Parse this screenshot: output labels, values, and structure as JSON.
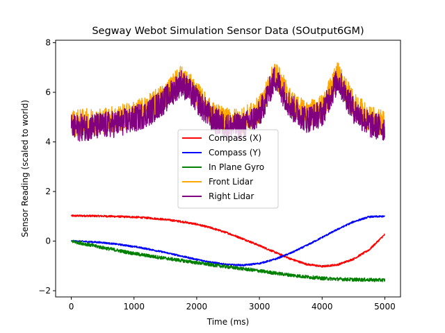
{
  "chart_data": {
    "type": "line",
    "title": "Segway Webot Simulation Sensor Data (SOutput6GM)",
    "xlabel": "Time (ms)",
    "ylabel": "Sensor Reading (scaled to world)",
    "xlim": [
      -250,
      5250
    ],
    "ylim": [
      -2.25,
      8.1
    ],
    "xticks": [
      0,
      1000,
      2000,
      3000,
      4000,
      5000
    ],
    "yticks": [
      -2,
      0,
      2,
      4,
      6,
      8
    ],
    "grid": false,
    "legend_position": "center",
    "series": [
      {
        "name": "Compass (X)",
        "color": "#ff0000",
        "noise": 0.04,
        "x": [
          0,
          250,
          500,
          750,
          1000,
          1250,
          1500,
          1750,
          2000,
          2250,
          2500,
          2750,
          3000,
          3250,
          3500,
          3750,
          4000,
          4250,
          4500,
          4750,
          5000
        ],
        "y": [
          1.02,
          1.02,
          1.01,
          0.99,
          0.97,
          0.93,
          0.87,
          0.79,
          0.68,
          0.52,
          0.32,
          0.08,
          -0.18,
          -0.45,
          -0.72,
          -0.93,
          -1.02,
          -0.95,
          -0.72,
          -0.35,
          0.27
        ]
      },
      {
        "name": "Compass (Y)",
        "color": "#0000ff",
        "noise": 0.035,
        "x": [
          0,
          250,
          500,
          750,
          1000,
          1250,
          1500,
          1750,
          2000,
          2250,
          2500,
          2750,
          3000,
          3250,
          3500,
          3750,
          4000,
          4250,
          4500,
          4750,
          5000
        ],
        "y": [
          0.0,
          -0.02,
          -0.06,
          -0.13,
          -0.22,
          -0.33,
          -0.46,
          -0.6,
          -0.74,
          -0.86,
          -0.95,
          -0.97,
          -0.9,
          -0.73,
          -0.48,
          -0.18,
          0.15,
          0.48,
          0.78,
          0.98,
          1.0
        ]
      },
      {
        "name": "In Plane Gyro",
        "color": "#008000",
        "noise": 0.07,
        "x": [
          0,
          250,
          500,
          750,
          1000,
          1250,
          1500,
          1750,
          2000,
          2250,
          2500,
          2750,
          3000,
          3250,
          3500,
          3750,
          4000,
          4250,
          4500,
          4750,
          5000
        ],
        "y": [
          0.0,
          -0.13,
          -0.26,
          -0.38,
          -0.5,
          -0.6,
          -0.69,
          -0.78,
          -0.87,
          -0.96,
          -1.04,
          -1.12,
          -1.2,
          -1.29,
          -1.37,
          -1.44,
          -1.5,
          -1.53,
          -1.55,
          -1.56,
          -1.57
        ]
      },
      {
        "name": "Front Lidar",
        "color": "#ffa500",
        "noise": 0.55,
        "x": [
          0,
          250,
          500,
          750,
          1000,
          1250,
          1500,
          1750,
          2000,
          2250,
          2500,
          2750,
          3000,
          3250,
          3500,
          3750,
          4000,
          4250,
          4500,
          4750,
          5000
        ],
        "y": [
          4.75,
          4.8,
          4.85,
          4.95,
          5.1,
          5.4,
          5.9,
          6.6,
          5.9,
          5.1,
          4.8,
          4.85,
          5.3,
          6.8,
          5.6,
          5.1,
          5.35,
          6.7,
          5.5,
          4.9,
          4.75
        ]
      },
      {
        "name": "Right Lidar",
        "color": "#800080",
        "noise": 0.55,
        "x": [
          0,
          250,
          500,
          750,
          1000,
          1250,
          1500,
          1750,
          2000,
          2250,
          2500,
          2750,
          3000,
          3250,
          3500,
          3750,
          4000,
          4250,
          4500,
          4750,
          5000
        ],
        "y": [
          4.55,
          4.6,
          4.65,
          4.75,
          4.9,
          5.2,
          5.7,
          6.4,
          5.7,
          4.9,
          4.6,
          4.65,
          5.1,
          6.6,
          5.4,
          4.9,
          5.15,
          6.5,
          5.3,
          4.7,
          4.55
        ]
      }
    ]
  }
}
